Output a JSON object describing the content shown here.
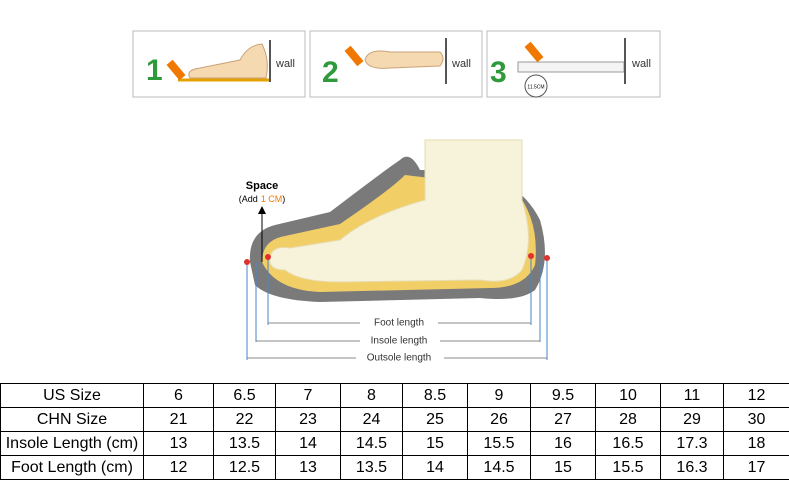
{
  "steps": [
    {
      "number": "1",
      "label": "wall"
    },
    {
      "number": "2",
      "label": "wall"
    },
    {
      "number": "3",
      "label": "wall",
      "reading": "11.5CM"
    }
  ],
  "diagram": {
    "space_title": "Space",
    "space_note_before": "(Add",
    "space_note_highlight": "1 CM",
    "space_note_after": ")",
    "foot_length": "Foot length",
    "insole_length": "Insole length",
    "outsole_length": "Outsole length"
  },
  "table": {
    "rows": [
      [
        "US Size",
        "6",
        "6.5",
        "7",
        "8",
        "8.5",
        "9",
        "9.5",
        "10",
        "11",
        "12"
      ],
      [
        "CHN Size",
        "21",
        "22",
        "23",
        "24",
        "25",
        "26",
        "27",
        "28",
        "29",
        "30"
      ],
      [
        "Insole Length (cm)",
        "13",
        "13.5",
        "14",
        "14.5",
        "15",
        "15.5",
        "16",
        "16.5",
        "17.3",
        "18"
      ],
      [
        "Foot Length (cm)",
        "12",
        "12.5",
        "13",
        "13.5",
        "14",
        "14.5",
        "15",
        "15.5",
        "16.3",
        "17"
      ]
    ]
  }
}
